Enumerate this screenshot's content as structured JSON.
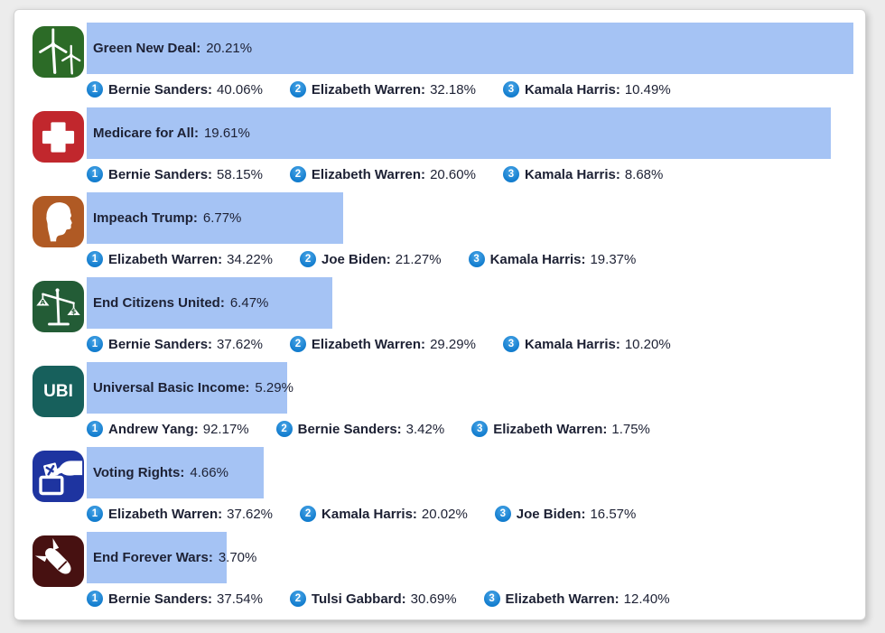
{
  "page": {
    "background_color": "#ececec",
    "card_background_color": "#ffffff",
    "text_color": "#1d2134"
  },
  "chart_data": {
    "type": "bar",
    "orientation": "horizontal",
    "title": "",
    "unit": "%",
    "max_value": 20.21,
    "bar_color": "#a5c3f4",
    "rank_badge_color": "#137dce",
    "legend": "none",
    "axes": "none (bar lengths scaled so 20.21% fills the track)",
    "rows": [
      {
        "label": "Green New Deal:",
        "value": "20.21%",
        "value_num": 20.21,
        "icon": "wind-turbine",
        "icon_color": "#2c6b27",
        "ranks": [
          {
            "rank": "1",
            "name_label": "Bernie Sanders:",
            "value": "40.06%"
          },
          {
            "rank": "2",
            "name_label": "Elizabeth Warren:",
            "value": "32.18%"
          },
          {
            "rank": "3",
            "name_label": "Kamala Harris:",
            "value": "10.49%"
          }
        ]
      },
      {
        "label": "Medicare for All:",
        "value": "19.61%",
        "value_num": 19.61,
        "icon": "medical-cross",
        "icon_color": "#c1272d",
        "ranks": [
          {
            "rank": "1",
            "name_label": "Bernie Sanders:",
            "value": "58.15%"
          },
          {
            "rank": "2",
            "name_label": "Elizabeth Warren:",
            "value": "20.60%"
          },
          {
            "rank": "3",
            "name_label": "Kamala Harris:",
            "value": "8.68%"
          }
        ]
      },
      {
        "label": "Impeach Trump:",
        "value": "6.77%",
        "value_num": 6.77,
        "icon": "trump-profile",
        "icon_color": "#b05a24",
        "ranks": [
          {
            "rank": "1",
            "name_label": "Elizabeth Warren:",
            "value": "34.22%"
          },
          {
            "rank": "2",
            "name_label": "Joe Biden:",
            "value": "21.27%"
          },
          {
            "rank": "3",
            "name_label": "Kamala Harris:",
            "value": "19.37%"
          }
        ]
      },
      {
        "label": "End Citizens United:",
        "value": "6.47%",
        "value_num": 6.47,
        "icon": "scales-of-justice",
        "icon_color": "#235c36",
        "ranks": [
          {
            "rank": "1",
            "name_label": "Bernie Sanders:",
            "value": "37.62%"
          },
          {
            "rank": "2",
            "name_label": "Elizabeth Warren:",
            "value": "29.29%"
          },
          {
            "rank": "3",
            "name_label": "Kamala Harris:",
            "value": "10.20%"
          }
        ]
      },
      {
        "label": "Universal Basic Income:",
        "value": "5.29%",
        "value_num": 5.29,
        "icon": "ubi-text",
        "icon_text": "UBI",
        "icon_color": "#17605c",
        "ranks": [
          {
            "rank": "1",
            "name_label": "Andrew Yang:",
            "value": "92.17%"
          },
          {
            "rank": "2",
            "name_label": "Bernie Sanders:",
            "value": "3.42%"
          },
          {
            "rank": "3",
            "name_label": "Elizabeth Warren:",
            "value": "1.75%"
          }
        ]
      },
      {
        "label": "Voting Rights:",
        "value": "4.66%",
        "value_num": 4.66,
        "icon": "ballot-box",
        "icon_color": "#1e34a0",
        "ranks": [
          {
            "rank": "1",
            "name_label": "Elizabeth Warren:",
            "value": "37.62%"
          },
          {
            "rank": "2",
            "name_label": "Kamala Harris:",
            "value": "20.02%"
          },
          {
            "rank": "3",
            "name_label": "Joe Biden:",
            "value": "16.57%"
          }
        ]
      },
      {
        "label": "End Forever Wars:",
        "value": "3.70%",
        "value_num": 3.7,
        "icon": "bomb",
        "icon_color": "#471111",
        "ranks": [
          {
            "rank": "1",
            "name_label": "Bernie Sanders:",
            "value": "37.54%"
          },
          {
            "rank": "2",
            "name_label": "Tulsi Gabbard:",
            "value": "30.69%"
          },
          {
            "rank": "3",
            "name_label": "Elizabeth Warren:",
            "value": "12.40%"
          }
        ]
      }
    ]
  }
}
